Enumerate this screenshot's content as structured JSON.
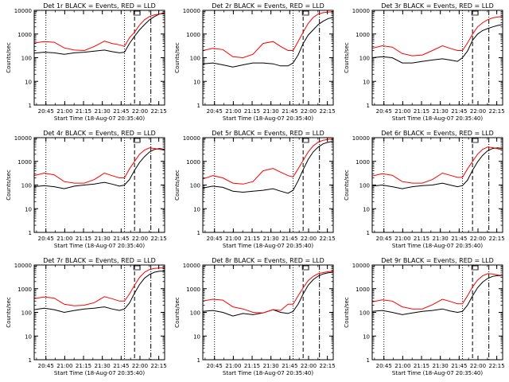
{
  "colors": {
    "events": "#000000",
    "lld": "#ff0000",
    "axes": "#000000"
  },
  "chart_data": {
    "type": "line",
    "grid": "3x3",
    "x_tick_labels": [
      "20:45",
      "21:00",
      "21:15",
      "21:30",
      "21:45",
      "22:00",
      "22:15"
    ],
    "x_ticks_minutes_after_start": [
      9.33,
      24.33,
      39.33,
      54.33,
      69.33,
      84.33,
      99.33
    ],
    "xlim_minutes_after_start": [
      0,
      104
    ],
    "xlabel": "Start Time (18-Aug-07 20:35:40)",
    "ylabel": "Counts/sec",
    "ylim": [
      1,
      10000
    ],
    "yscale": "log",
    "y_tick_labels": [
      "1",
      "10",
      "100",
      "1000",
      "10000"
    ],
    "x_samples_minutes": [
      0,
      8,
      16,
      24,
      32,
      40,
      48,
      56,
      62,
      68,
      72,
      76,
      80,
      84,
      88,
      92,
      96,
      100,
      104
    ],
    "panels": [
      {
        "title": "Det 1r BLACK = Events, RED = LLD",
        "events": [
          155,
          170,
          160,
          140,
          160,
          170,
          190,
          210,
          180,
          160,
          170,
          400,
          800,
          1500,
          2500,
          4000,
          5500,
          7000,
          8000
        ],
        "lld": [
          420,
          480,
          450,
          260,
          210,
          200,
          300,
          500,
          400,
          350,
          300,
          700,
          1200,
          2400,
          4000,
          5500,
          6500,
          7000,
          7200
        ]
      },
      {
        "title": "Det 2r BLACK = Events, RED = LLD",
        "events": [
          55,
          60,
          50,
          40,
          50,
          60,
          60,
          55,
          45,
          45,
          60,
          130,
          400,
          900,
          1500,
          2500,
          3500,
          4500,
          5000
        ],
        "lld": [
          200,
          250,
          220,
          110,
          100,
          140,
          400,
          480,
          300,
          200,
          200,
          480,
          1200,
          2800,
          5000,
          7000,
          8000,
          8500,
          8700
        ]
      },
      {
        "title": "Det 3r BLACK = Events, RED = LLD",
        "events": [
          100,
          110,
          100,
          60,
          60,
          70,
          80,
          90,
          80,
          70,
          100,
          190,
          550,
          1000,
          1400,
          1700,
          2000,
          2300,
          2500
        ],
        "lld": [
          250,
          320,
          280,
          150,
          120,
          130,
          200,
          320,
          250,
          200,
          200,
          420,
          1000,
          2000,
          3000,
          4000,
          4800,
          5200,
          5500
        ]
      },
      {
        "title": "Det 4r BLACK = Events, RED = LLD",
        "events": [
          85,
          95,
          85,
          70,
          90,
          100,
          110,
          130,
          110,
          90,
          100,
          170,
          420,
          900,
          1600,
          2500,
          3200,
          3500,
          3200
        ],
        "lld": [
          250,
          320,
          270,
          140,
          120,
          120,
          170,
          320,
          250,
          200,
          200,
          480,
          1000,
          2000,
          3000,
          3700,
          3500,
          3200,
          3000
        ]
      },
      {
        "title": "Det 5r BLACK = Events, RED = LLD",
        "events": [
          75,
          90,
          80,
          55,
          50,
          55,
          60,
          70,
          55,
          45,
          60,
          150,
          450,
          1200,
          2500,
          4000,
          5500,
          6500,
          7000
        ],
        "lld": [
          180,
          250,
          200,
          120,
          110,
          140,
          400,
          500,
          350,
          250,
          220,
          480,
          1100,
          2500,
          4500,
          6500,
          7800,
          8500,
          8800
        ]
      },
      {
        "title": "Det 6r BLACK = Events, RED = LLD",
        "events": [
          90,
          100,
          85,
          70,
          85,
          95,
          100,
          120,
          100,
          85,
          95,
          160,
          420,
          950,
          1800,
          2800,
          3500,
          3700,
          3500
        ],
        "lld": [
          240,
          300,
          260,
          140,
          120,
          120,
          170,
          320,
          260,
          210,
          210,
          480,
          1000,
          2000,
          3200,
          4000,
          3800,
          3400,
          3000
        ]
      },
      {
        "title": "Det 7r BLACK = Events, RED = LLD",
        "events": [
          130,
          150,
          130,
          100,
          120,
          140,
          150,
          170,
          140,
          120,
          140,
          250,
          650,
          1500,
          2800,
          4000,
          5000,
          5500,
          5500
        ],
        "lld": [
          380,
          450,
          400,
          220,
          190,
          200,
          260,
          460,
          380,
          300,
          300,
          600,
          1400,
          3000,
          5000,
          6500,
          7200,
          7500,
          7500
        ]
      },
      {
        "title": "Det 8r BLACK = Events, RED = LLD",
        "events": [
          110,
          120,
          100,
          70,
          90,
          80,
          95,
          130,
          100,
          90,
          110,
          220,
          600,
          1400,
          2400,
          3400,
          4200,
          4700,
          5000
        ],
        "lld": [
          300,
          360,
          330,
          170,
          140,
          100,
          95,
          130,
          120,
          220,
          220,
          500,
          1100,
          2200,
          3300,
          4300,
          4800,
          5200,
          5500
        ]
      },
      {
        "title": "Det 9r BLACK = Events, RED = LLD",
        "events": [
          110,
          120,
          100,
          80,
          95,
          110,
          120,
          140,
          115,
          100,
          110,
          200,
          500,
          1100,
          1900,
          2700,
          3300,
          3600,
          3500
        ],
        "lld": [
          280,
          340,
          300,
          170,
          140,
          140,
          210,
          360,
          290,
          230,
          230,
          500,
          1200,
          2300,
          3500,
          4300,
          4200,
          3800,
          3500
        ]
      }
    ],
    "markers": {
      "dotted_minutes": [
        9.33,
        72
      ],
      "dashed_minutes": [
        80
      ],
      "dash_dot_minutes": [
        93
      ],
      "top_box_minutes": 80
    }
  }
}
